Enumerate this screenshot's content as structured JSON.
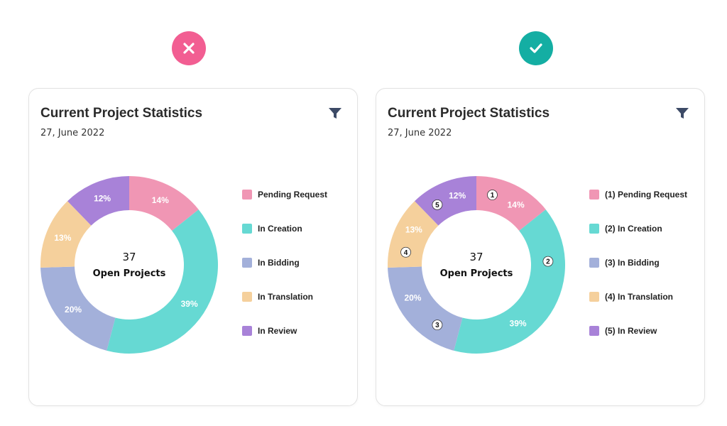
{
  "chart_data": [
    {
      "type": "pie",
      "variant": "donut",
      "title": "Current Project Statistics",
      "subtitle": "27, June 2022",
      "center_value": "37",
      "center_label": "Open Projects",
      "numbered": false,
      "categories": [
        "Pending Request",
        "In Creation",
        "In Bidding",
        "In Translation",
        "In Review"
      ],
      "values": [
        14,
        39,
        20,
        13,
        12
      ],
      "value_suffix": "%",
      "colors": [
        "#f096b4",
        "#66d9d3",
        "#a3b0da",
        "#f5d09c",
        "#a882d8"
      ],
      "legend_position": "right"
    },
    {
      "type": "pie",
      "variant": "donut",
      "title": "Current Project Statistics",
      "subtitle": "27, June 2022",
      "center_value": "37",
      "center_label": "Open Projects",
      "numbered": true,
      "categories": [
        "(1) Pending Request",
        "(2) In Creation",
        "(3) In Bidding",
        "(4) In Translation",
        "(5) In Review"
      ],
      "markers": [
        "1",
        "2",
        "3",
        "4",
        "5"
      ],
      "values": [
        14,
        39,
        20,
        13,
        12
      ],
      "value_suffix": "%",
      "colors": [
        "#f096b4",
        "#66d9d3",
        "#a3b0da",
        "#f5d09c",
        "#a882d8"
      ],
      "legend_position": "right"
    }
  ],
  "verdicts": [
    {
      "icon": "x-icon",
      "color": "#f25e92"
    },
    {
      "icon": "check-icon",
      "color": "#14aea3"
    }
  ],
  "filter_icon": "funnel-icon"
}
